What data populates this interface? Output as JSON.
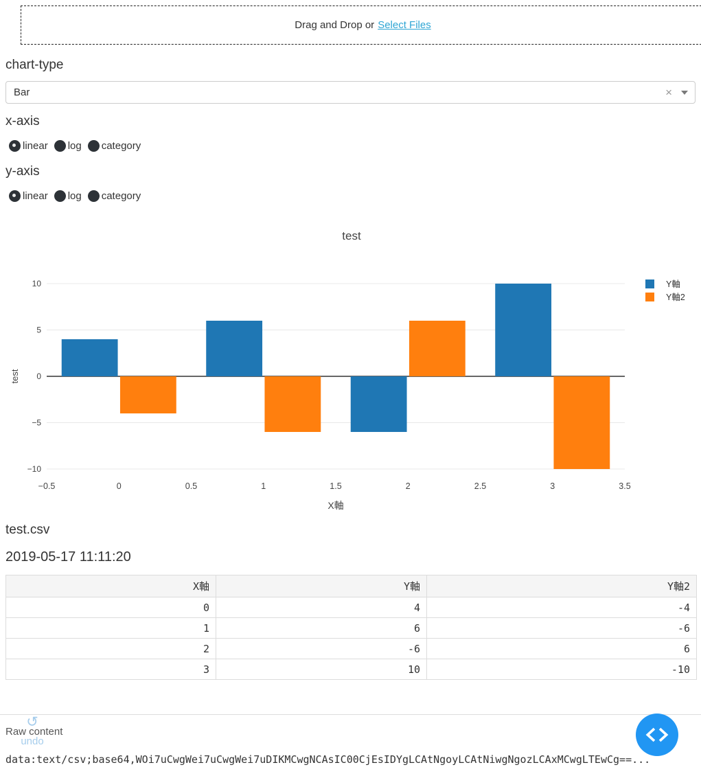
{
  "dropzone": {
    "text": "Drag and Drop or",
    "link_label": "Select Files"
  },
  "chart_type_section": {
    "heading": "chart-type",
    "selected": "Bar",
    "clear_icon": "×"
  },
  "x_axis_section": {
    "heading": "x-axis",
    "options": [
      {
        "label": "linear",
        "selected": true
      },
      {
        "label": "log",
        "selected": false
      },
      {
        "label": "category",
        "selected": false
      }
    ]
  },
  "y_axis_section": {
    "heading": "y-axis",
    "options": [
      {
        "label": "linear",
        "selected": true
      },
      {
        "label": "log",
        "selected": false
      },
      {
        "label": "category",
        "selected": false
      }
    ]
  },
  "chart_data": {
    "type": "bar",
    "bar_mode": "group",
    "title": "test",
    "xlabel": "X軸",
    "ylabel": "test",
    "x": [
      0,
      1,
      2,
      3
    ],
    "series": [
      {
        "name": "Y軸",
        "color": "#1f77b4",
        "values": [
          4,
          6,
          -6,
          10
        ]
      },
      {
        "name": "Y軸2",
        "color": "#ff7f0e",
        "values": [
          -4,
          -6,
          6,
          -10
        ]
      }
    ],
    "xlim": [
      -0.5,
      3.5
    ],
    "ylim": [
      -10,
      10
    ],
    "xticks": [
      -0.5,
      0,
      0.5,
      1,
      1.5,
      2,
      2.5,
      3,
      3.5
    ],
    "yticks": [
      -10,
      -5,
      0,
      5,
      10
    ],
    "grid": true,
    "legend_position": "top-right"
  },
  "file_info": {
    "filename": "test.csv",
    "timestamp": "2019-05-17 11:11:20"
  },
  "table": {
    "columns": [
      "X軸",
      "Y軸",
      "Y軸2"
    ],
    "rows": [
      [
        "0",
        "4",
        "-4"
      ],
      [
        "1",
        "6",
        "-6"
      ],
      [
        "2",
        "-6",
        "6"
      ],
      [
        "3",
        "10",
        "-10"
      ]
    ]
  },
  "raw_content": {
    "heading": "Raw content",
    "undo_label": "undo",
    "data_uri": "data:text/csv;base64,WOi7uCwgWei7uCwgWei7uDIKMCwgNCAsIC00CjEsIDYgLCAtNgoyLCAtNiwgNgozLCAxMCwgLTEwCg==..."
  },
  "colors": {
    "accent_blue": "#2196f3",
    "link_blue": "#2ea5d4",
    "undo_blue": "#a6cdec",
    "bar_blue": "#1f77b4",
    "bar_orange": "#ff7f0e"
  }
}
